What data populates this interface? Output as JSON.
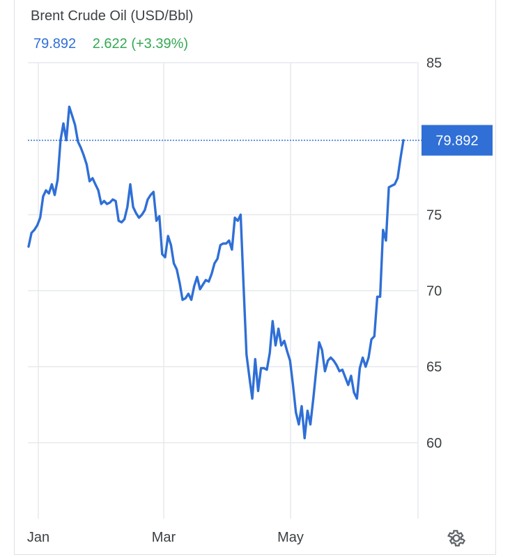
{
  "chart_data": {
    "type": "line",
    "title": "Brent Crude Oil (USD/Bbl)",
    "last_price": "79.892",
    "change": "2.622 (+3.39%)",
    "current_value_label": "79.892",
    "current_value": 79.892,
    "ylim": [
      55,
      85
    ],
    "y_ticks": [
      {
        "value": 85,
        "label": "85"
      },
      {
        "value": 75,
        "label": "75"
      },
      {
        "value": 70,
        "label": "70"
      },
      {
        "value": 65,
        "label": "65"
      },
      {
        "value": 60,
        "label": "60"
      }
    ],
    "x_ticks": [
      "Jan",
      "Mar",
      "May"
    ],
    "grid": true,
    "line_color": "#2f6fd6",
    "series": [
      {
        "values": [
          72.9,
          73.8,
          74.0,
          74.3,
          74.8,
          76.2,
          76.6,
          76.4,
          77.0,
          76.3,
          77.3,
          79.9,
          81.0,
          79.9,
          82.1,
          81.5,
          80.9,
          79.8,
          79.4,
          78.9,
          78.3,
          77.2,
          77.4,
          77.0,
          76.6,
          75.7,
          75.9,
          75.7,
          75.8,
          76.0,
          75.9,
          74.6,
          74.5,
          74.7,
          75.5,
          77.0,
          75.5,
          75.1,
          74.8,
          75.0,
          75.3,
          76.0,
          76.3,
          76.5,
          74.6,
          74.9,
          72.4,
          72.2,
          73.6,
          73.0,
          71.8,
          71.4,
          70.5,
          69.4,
          69.5,
          69.8,
          69.4,
          70.3,
          70.9,
          70.1,
          70.4,
          70.7,
          70.6,
          71.1,
          71.8,
          72.1,
          73.0,
          73.1,
          73.1,
          73.3,
          72.7,
          74.8,
          74.6,
          75.0,
          70.3,
          65.8,
          64.3,
          62.9,
          65.5,
          63.4,
          64.9,
          64.9,
          64.8,
          65.9,
          68.0,
          66.4,
          67.5,
          66.4,
          66.7,
          66.0,
          65.4,
          63.8,
          62.0,
          61.2,
          62.4,
          60.3,
          62.1,
          61.2,
          62.9,
          64.8,
          66.6,
          66.1,
          64.7,
          65.4,
          65.6,
          65.4,
          65.1,
          64.7,
          64.8,
          64.3,
          63.8,
          64.4,
          63.3,
          62.9,
          64.9,
          65.6,
          65.0,
          65.6,
          66.8,
          67.0,
          69.6,
          69.6,
          74.0,
          73.3,
          76.8,
          76.9,
          77.0,
          77.4,
          78.7,
          79.892
        ]
      }
    ]
  }
}
